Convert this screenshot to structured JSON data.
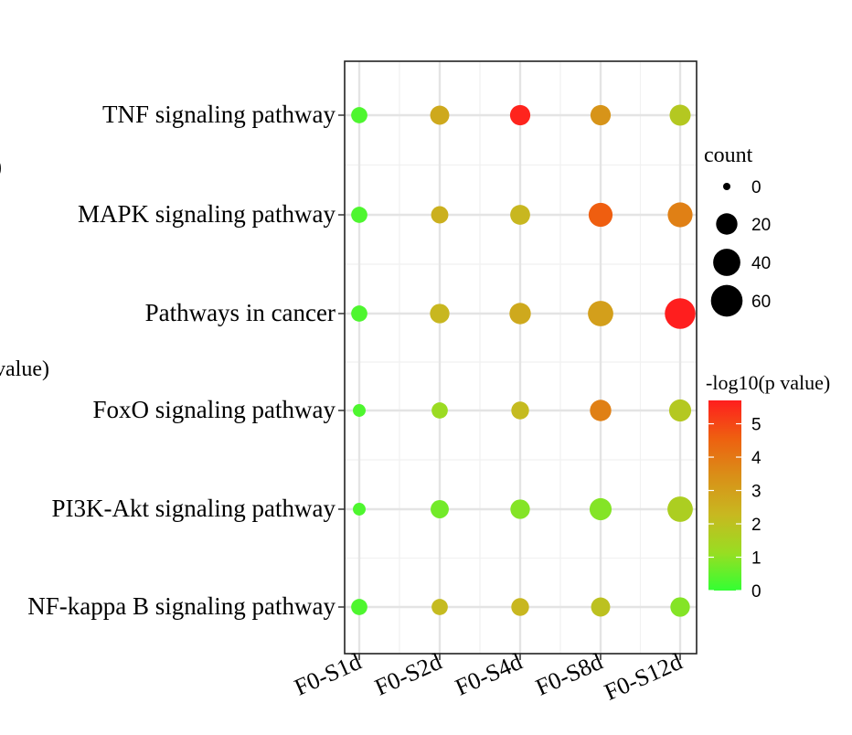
{
  "chart_data": {
    "type": "scatter",
    "categories_x": [
      "F0-S1d",
      "F0-S2d",
      "F0-S4d",
      "F0-S8d",
      "F0-S12d"
    ],
    "categories_y": [
      "TNF signaling pathway",
      "MAPK signaling pathway",
      "Pathways in cancer",
      "FoxO signaling pathway",
      "PI3K-Akt signaling pathway",
      "NF-kappa B signaling pathway"
    ],
    "points": [
      {
        "pathway": "TNF signaling pathway",
        "sample": "F0-S1d",
        "count": 8,
        "neglog10p": 0.3
      },
      {
        "pathway": "TNF signaling pathway",
        "sample": "F0-S2d",
        "count": 14,
        "neglog10p": 2.7
      },
      {
        "pathway": "TNF signaling pathway",
        "sample": "F0-S4d",
        "count": 17,
        "neglog10p": 5.6
      },
      {
        "pathway": "TNF signaling pathway",
        "sample": "F0-S8d",
        "count": 17,
        "neglog10p": 3.3
      },
      {
        "pathway": "TNF signaling pathway",
        "sample": "F0-S12d",
        "count": 19,
        "neglog10p": 1.8
      },
      {
        "pathway": "MAPK signaling pathway",
        "sample": "F0-S1d",
        "count": 8,
        "neglog10p": 0.3
      },
      {
        "pathway": "MAPK signaling pathway",
        "sample": "F0-S2d",
        "count": 10,
        "neglog10p": 2.5
      },
      {
        "pathway": "MAPK signaling pathway",
        "sample": "F0-S4d",
        "count": 16,
        "neglog10p": 2.3
      },
      {
        "pathway": "MAPK signaling pathway",
        "sample": "F0-S8d",
        "count": 28,
        "neglog10p": 4.6
      },
      {
        "pathway": "MAPK signaling pathway",
        "sample": "F0-S12d",
        "count": 31,
        "neglog10p": 3.8
      },
      {
        "pathway": "Pathways in cancer",
        "sample": "F0-S1d",
        "count": 8,
        "neglog10p": 0.3
      },
      {
        "pathway": "Pathways in cancer",
        "sample": "F0-S2d",
        "count": 15,
        "neglog10p": 2.3
      },
      {
        "pathway": "Pathways in cancer",
        "sample": "F0-S4d",
        "count": 20,
        "neglog10p": 2.7
      },
      {
        "pathway": "Pathways in cancer",
        "sample": "F0-S8d",
        "count": 33,
        "neglog10p": 3.0
      },
      {
        "pathway": "Pathways in cancer",
        "sample": "F0-S12d",
        "count": 55,
        "neglog10p": 5.7
      },
      {
        "pathway": "FoxO signaling pathway",
        "sample": "F0-S1d",
        "count": 3,
        "neglog10p": 0.3
      },
      {
        "pathway": "FoxO signaling pathway",
        "sample": "F0-S2d",
        "count": 8,
        "neglog10p": 1.2
      },
      {
        "pathway": "FoxO signaling pathway",
        "sample": "F0-S4d",
        "count": 11,
        "neglog10p": 2.2
      },
      {
        "pathway": "FoxO signaling pathway",
        "sample": "F0-S8d",
        "count": 20,
        "neglog10p": 3.8
      },
      {
        "pathway": "FoxO signaling pathway",
        "sample": "F0-S12d",
        "count": 22,
        "neglog10p": 1.8
      },
      {
        "pathway": "PI3K-Akt signaling pathway",
        "sample": "F0-S1d",
        "count": 3,
        "neglog10p": 0.3
      },
      {
        "pathway": "PI3K-Akt signaling pathway",
        "sample": "F0-S2d",
        "count": 12,
        "neglog10p": 0.7
      },
      {
        "pathway": "PI3K-Akt signaling pathway",
        "sample": "F0-S4d",
        "count": 15,
        "neglog10p": 0.9
      },
      {
        "pathway": "PI3K-Akt signaling pathway",
        "sample": "F0-S8d",
        "count": 22,
        "neglog10p": 0.9
      },
      {
        "pathway": "PI3K-Akt signaling pathway",
        "sample": "F0-S12d",
        "count": 33,
        "neglog10p": 1.6
      },
      {
        "pathway": "NF-kappa B signaling pathway",
        "sample": "F0-S1d",
        "count": 8,
        "neglog10p": 0.3
      },
      {
        "pathway": "NF-kappa B signaling pathway",
        "sample": "F0-S2d",
        "count": 8,
        "neglog10p": 2.2
      },
      {
        "pathway": "NF-kappa B signaling pathway",
        "sample": "F0-S4d",
        "count": 11,
        "neglog10p": 2.3
      },
      {
        "pathway": "NF-kappa B signaling pathway",
        "sample": "F0-S8d",
        "count": 14,
        "neglog10p": 2.0
      },
      {
        "pathway": "NF-kappa B signaling pathway",
        "sample": "F0-S12d",
        "count": 15,
        "neglog10p": 0.9
      }
    ],
    "size_legend": {
      "title": "count",
      "values": [
        0,
        20,
        40,
        60
      ]
    },
    "color_legend": {
      "title": "-log10(p value)",
      "ticks": [
        0,
        1,
        2,
        3,
        4,
        5
      ],
      "range": [
        0,
        5.7
      ],
      "colors": [
        "#33ff33",
        "#99dd22",
        "#c8b820",
        "#d99018",
        "#ee6010",
        "#ff1e1e"
      ]
    },
    "grid": true,
    "legend_position": "right",
    "clipped_left_labels": [
      ")",
      "value)"
    ]
  }
}
